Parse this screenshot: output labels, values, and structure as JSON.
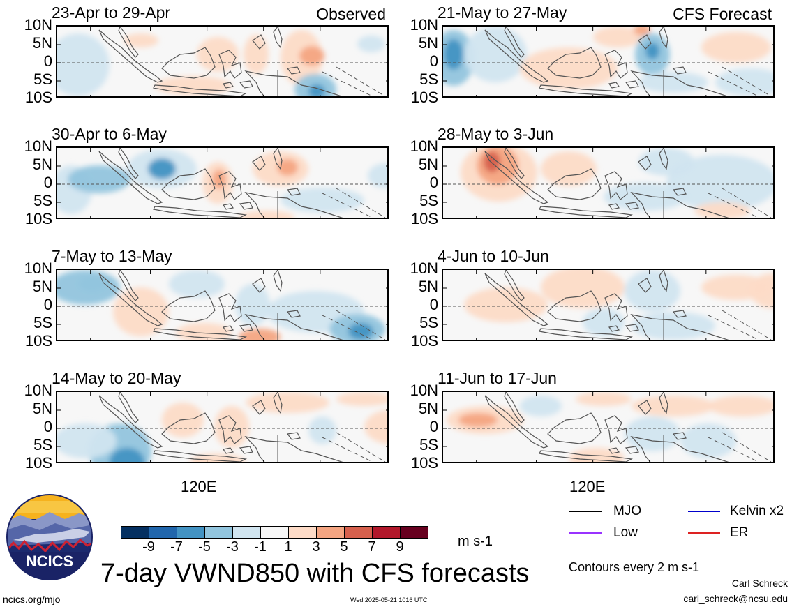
{
  "chart_data": {
    "type": "heatmap",
    "title": "7-day VWND850 with CFS forecasts",
    "units": "m s-1",
    "y_ticks": [
      "10N",
      "5N",
      "0",
      "5S",
      "10S"
    ],
    "x_ticks": [
      "120E"
    ],
    "colorbar": {
      "ticks": [
        "-9",
        "-7",
        "-5",
        "-3",
        "-1",
        "1",
        "3",
        "5",
        "7",
        "9"
      ],
      "colors": [
        "#053061",
        "#2166ac",
        "#4393c3",
        "#92c5de",
        "#d1e5f0",
        "#f7f7f7",
        "#fddbc7",
        "#f4a582",
        "#d6604d",
        "#b2182b",
        "#67001f"
      ]
    },
    "panels": [
      {
        "title": "23-Apr to 29-Apr",
        "tag": "Observed"
      },
      {
        "title": "30-Apr to 6-May",
        "tag": ""
      },
      {
        "title": "7-May to 13-May",
        "tag": ""
      },
      {
        "title": "14-May to 20-May",
        "tag": ""
      },
      {
        "title": "21-May to 27-May",
        "tag": "CFS Forecast"
      },
      {
        "title": "28-May to 3-Jun",
        "tag": ""
      },
      {
        "title": "4-Jun to 10-Jun",
        "tag": ""
      },
      {
        "title": "11-Jun to 17-Jun",
        "tag": ""
      }
    ]
  },
  "legend": {
    "items": [
      {
        "label": "MJO",
        "color": "#000000"
      },
      {
        "label": "Kelvin x2",
        "color": "#0000cc"
      },
      {
        "label": "Low",
        "color": "#9933ff"
      },
      {
        "label": "ER",
        "color": "#dd2222"
      }
    ],
    "contours_note": "Contours every 2 m s-1"
  },
  "footer": {
    "logo_text": "NCICS",
    "site": "ncics.org/mjo",
    "timestamp": "Wed 2025-05-21 1016 UTC",
    "author": "Carl Schreck",
    "email": "carl_schreck@ncsu.edu"
  }
}
